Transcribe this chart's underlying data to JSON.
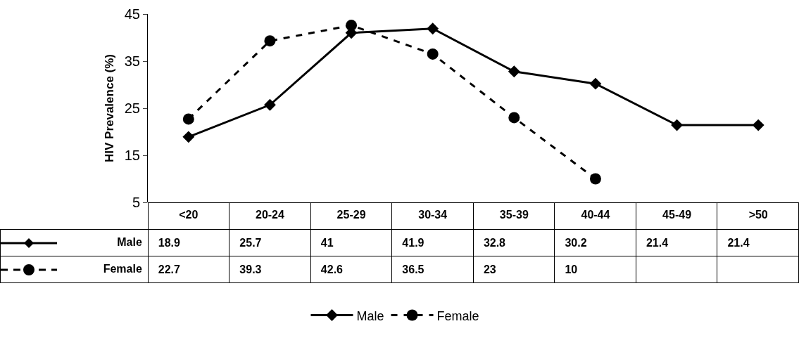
{
  "chart_data": {
    "type": "line",
    "ylabel": "HIV Prevalence (%)",
    "categories": [
      "<20",
      "20-24",
      "25-29",
      "30-34",
      "35-39",
      "40-44",
      "45-49",
      ">50"
    ],
    "series": [
      {
        "name": "Male",
        "color": "#000000",
        "marker": "diamond",
        "line_style": "solid",
        "values": [
          18.9,
          25.7,
          41,
          41.9,
          32.8,
          30.2,
          21.4,
          21.4
        ]
      },
      {
        "name": "Female",
        "color": "#000000",
        "marker": "circle",
        "line_style": "dashed",
        "values": [
          22.7,
          39.3,
          42.6,
          36.5,
          23,
          10,
          null,
          null
        ]
      }
    ],
    "ylim": [
      5,
      45
    ],
    "yticks": [
      5,
      15,
      25,
      35,
      45
    ],
    "grid": false,
    "legend": "bottom",
    "data_labels": true
  }
}
